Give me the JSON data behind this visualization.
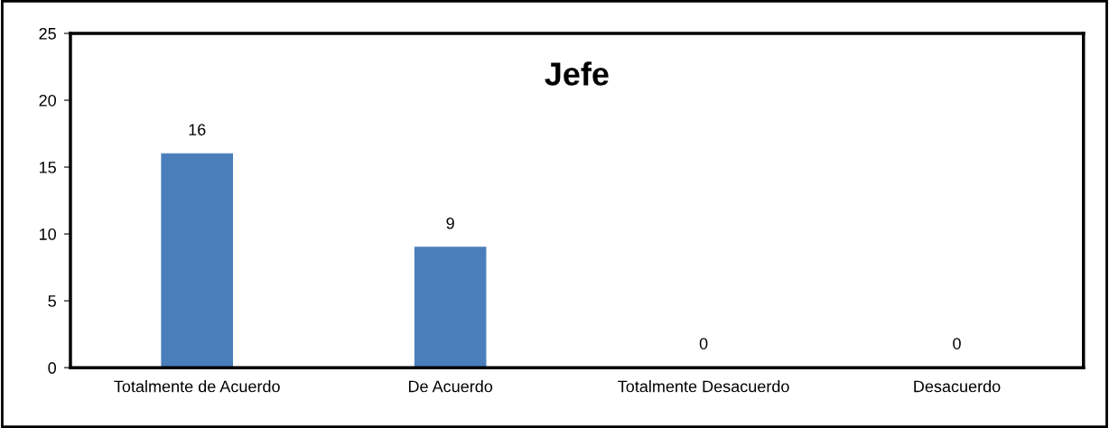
{
  "chart_data": {
    "type": "bar",
    "title": "Jefe",
    "categories": [
      "Totalmente de Acuerdo",
      "De Acuerdo",
      "Totalmente Desacuerdo",
      "Desacuerdo"
    ],
    "values": [
      16,
      9,
      0,
      0
    ],
    "color": "#4a7ebb",
    "ylim": [
      0,
      25
    ],
    "yticks": [
      0,
      5,
      10,
      15,
      20,
      25
    ],
    "grid": false,
    "data_labels": true
  }
}
